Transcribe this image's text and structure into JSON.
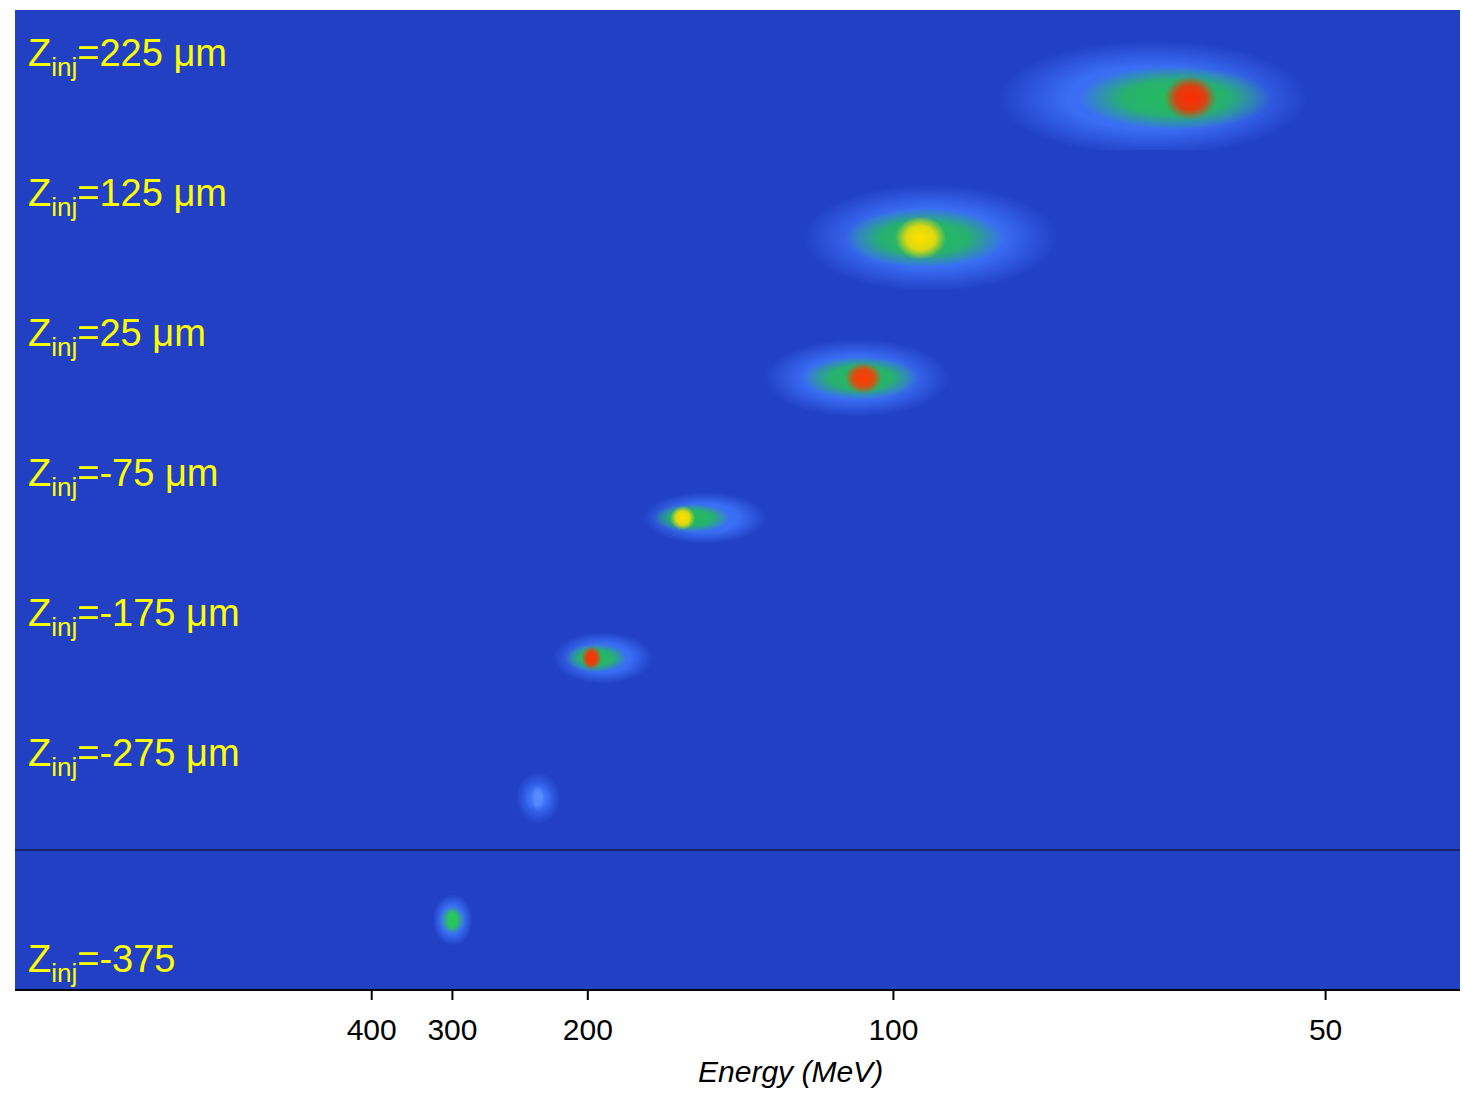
{
  "chart_data": {
    "type": "spectra",
    "symbol": "Z",
    "subscript": "inj",
    "xlabel": "Energy (MeV)",
    "xlim": [
      4000,
      42
    ],
    "xticks": [
      400,
      300,
      200,
      100,
      50
    ],
    "panels": [
      {
        "label": "=225 μm",
        "peak": 60.6,
        "low": 52,
        "high": 81,
        "colors": [
          "#3f78ff",
          "#22c050",
          "#ff2a00"
        ]
      },
      {
        "label": "=125 μm",
        "peak": 95,
        "low": 76,
        "high": 117,
        "colors": [
          "#3f78ff",
          "#22c050",
          "#ffe000"
        ]
      },
      {
        "label": "=25 μm",
        "peak": 106,
        "low": 92,
        "high": 127,
        "colors": [
          "#3f78ff",
          "#22c050",
          "#ff3a00"
        ]
      },
      {
        "label": "=-75 μm",
        "peak": 157,
        "low": 133,
        "high": 168,
        "colors": [
          "#3f78ff",
          "#22c050",
          "#ffe000"
        ]
      },
      {
        "label": "=-175 μm",
        "peak": 198,
        "low": 174,
        "high": 213,
        "colors": [
          "#3f78ff",
          "#22c050",
          "#ff3000"
        ]
      },
      {
        "label": "=-275 μm",
        "peak": 230,
        "low": 223,
        "high": 237,
        "colors": [
          "#3566f0",
          "#3f78ff",
          "#5a8cff"
        ]
      },
      {
        "label": "=-375",
        "peak": 300,
        "low": 292,
        "high": 308,
        "colors": [
          "#3f78ff",
          "#2fb07a",
          "#22cc55"
        ]
      }
    ]
  }
}
